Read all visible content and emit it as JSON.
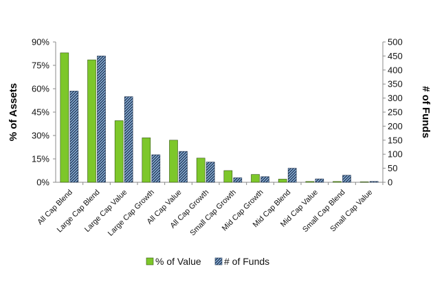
{
  "chart_data": {
    "type": "bar",
    "categories": [
      "All Cap Blend",
      "Large Cap Blend",
      "Large Cap Value",
      "Large Cap Growth",
      "All Cap Value",
      "All Cap Growth",
      "Small Cap Growth",
      "Mid Cap Growth",
      "Mid Cap Blend",
      "Mid Cap Value",
      "Small Cap Blend",
      "Small Cap Value"
    ],
    "series": [
      {
        "name": "% of Value",
        "axis": "left",
        "color": "#7dc72a",
        "values": [
          83,
          78.5,
          39.5,
          28.5,
          27,
          15.5,
          7.5,
          5,
          2,
          0.5,
          0.5,
          0.3
        ]
      },
      {
        "name": "# of Funds",
        "axis": "right",
        "color": "#7fa7cf",
        "pattern": "diagonal-hatch",
        "values": [
          325,
          450,
          305,
          98,
          110,
          72,
          16,
          20,
          50,
          12,
          25,
          3
        ]
      }
    ],
    "ylabel": "% of Assets",
    "y2label": "# of Funds",
    "ylim": [
      0,
      90
    ],
    "y2lim": [
      0,
      500
    ],
    "yticks": [
      "0%",
      "15%",
      "30%",
      "45%",
      "60%",
      "75%",
      "90%"
    ],
    "y2ticks": [
      "0",
      "50",
      "100",
      "150",
      "200",
      "250",
      "300",
      "350",
      "400",
      "450",
      "500"
    ],
    "legend": "bottom",
    "grid": false
  }
}
